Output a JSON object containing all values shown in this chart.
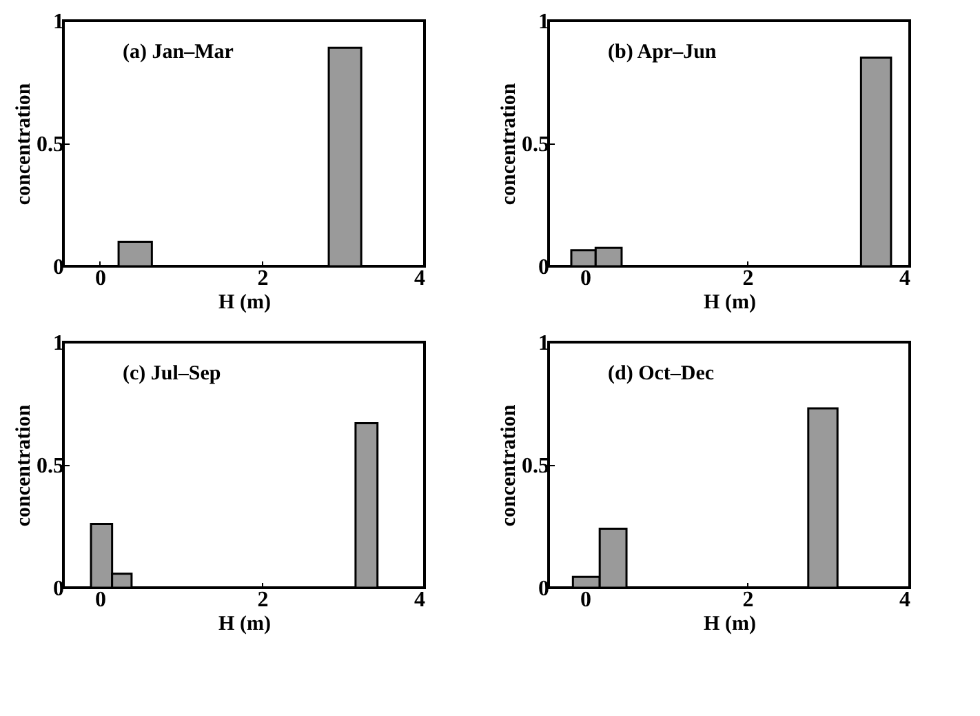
{
  "chart_data": [
    {
      "type": "histogram",
      "title": "(a) Jan–Mar",
      "xlabel": "H (m)",
      "ylabel": "concentration",
      "bins": [
        0.23,
        0.64,
        2.82,
        3.22
      ],
      "values": [
        0.1,
        0,
        0.89
      ],
      "color": "#9a9a9a",
      "xlim": [
        -0.45,
        4
      ],
      "xticks": [
        0,
        2,
        4
      ],
      "ylim": [
        0,
        1
      ],
      "yticks": [
        0,
        0.5,
        1
      ]
    },
    {
      "type": "histogram",
      "title": "(b) Apr–Jun",
      "xlabel": "H (m)",
      "ylabel": "concentration",
      "bins": [
        -0.17,
        0.13,
        0.45,
        3.4,
        3.77
      ],
      "values": [
        0.065,
        0.075,
        0,
        0.85
      ],
      "color": "#9a9a9a",
      "xlim": [
        -0.45,
        4
      ],
      "xticks": [
        0,
        2,
        4
      ],
      "ylim": [
        0,
        1
      ],
      "yticks": [
        0,
        0.5,
        1
      ]
    },
    {
      "type": "histogram",
      "title": "(c) Jul–Sep",
      "xlabel": "H (m)",
      "ylabel": "concentration",
      "bins": [
        -0.11,
        0.15,
        0.39,
        3.15,
        3.42
      ],
      "values": [
        0.26,
        0.057,
        0,
        0.67
      ],
      "color": "#9a9a9a",
      "xlim": [
        -0.45,
        4
      ],
      "xticks": [
        0,
        2,
        4
      ],
      "ylim": [
        0,
        1
      ],
      "yticks": [
        0,
        0.5,
        1
      ]
    },
    {
      "type": "histogram",
      "title": "(d) Oct–Dec",
      "xlabel": "H (m)",
      "ylabel": "concentration",
      "bins": [
        -0.15,
        0.18,
        0.51,
        2.75,
        3.11
      ],
      "values": [
        0.044,
        0.24,
        0,
        0.73
      ],
      "color": "#9a9a9a",
      "xlim": [
        -0.45,
        4
      ],
      "xticks": [
        0,
        2,
        4
      ],
      "ylim": [
        0,
        1
      ],
      "yticks": [
        0,
        0.5,
        1
      ]
    }
  ]
}
